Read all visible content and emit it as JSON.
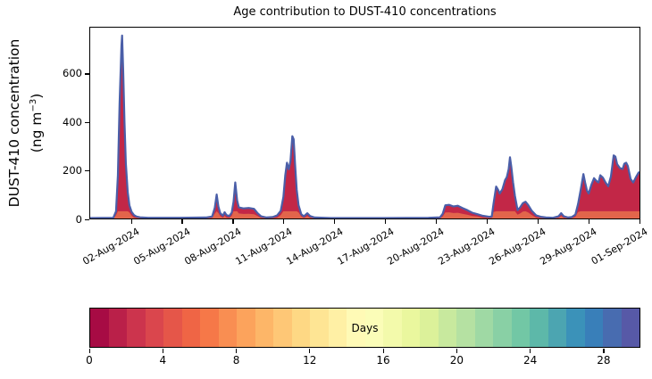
{
  "chart_data": {
    "type": "area",
    "stacked": true,
    "title": "Age contribution to DUST-410 concentrations",
    "ylabel": "DUST-410 concentration (ng m⁻³)",
    "ylabel_line1": "DUST-410 concentration",
    "ylabel_line2_prefix": "(ng m",
    "ylabel_sup": "−3",
    "ylabel_line2_suffix": ")",
    "ylim": [
      0,
      795
    ],
    "yticks": [
      0,
      200,
      400,
      600
    ],
    "grid": false,
    "x_domain_days": [
      -2.48,
      30.05
    ],
    "x_ticks": [
      {
        "day": 0,
        "label": "02-Aug-2024"
      },
      {
        "day": 3,
        "label": "05-Aug-2024"
      },
      {
        "day": 6,
        "label": "08-Aug-2024"
      },
      {
        "day": 9,
        "label": "11-Aug-2024"
      },
      {
        "day": 12,
        "label": "14-Aug-2024"
      },
      {
        "day": 15,
        "label": "17-Aug-2024"
      },
      {
        "day": 18,
        "label": "20-Aug-2024"
      },
      {
        "day": 21,
        "label": "23-Aug-2024"
      },
      {
        "day": 24,
        "label": "26-Aug-2024"
      },
      {
        "day": 27,
        "label": "29-Aug-2024"
      },
      {
        "day": 30,
        "label": "01-Sep-2024"
      }
    ],
    "colorbar": {
      "label": "Days",
      "ticks": [
        0,
        4,
        8,
        12,
        16,
        20,
        24,
        28
      ],
      "range": [
        0,
        30
      ],
      "segments": 30,
      "colormap": "Spectral",
      "stops": [
        [
          0.0,
          "#9e0142"
        ],
        [
          0.1,
          "#d53e4f"
        ],
        [
          0.2,
          "#f46d43"
        ],
        [
          0.3,
          "#fdae61"
        ],
        [
          0.4,
          "#fee08b"
        ],
        [
          0.5,
          "#ffffbf"
        ],
        [
          0.6,
          "#e6f598"
        ],
        [
          0.7,
          "#abdda4"
        ],
        [
          0.8,
          "#66c2a5"
        ],
        [
          0.9,
          "#3288bd"
        ],
        [
          1.0,
          "#5e4fa2"
        ]
      ]
    },
    "series_description": "Total DUST-410 concentration; area colored by dust age (red = young days, blue = old days)",
    "points_units": {
      "x": "days since 02-Aug-2024 00:00",
      "y": "ng m⁻³"
    },
    "points": [
      [
        -2.48,
        2
      ],
      [
        -1.11,
        3
      ],
      [
        -0.95,
        30
      ],
      [
        -0.84,
        180
      ],
      [
        -0.74,
        480
      ],
      [
        -0.63,
        720
      ],
      [
        -0.59,
        762
      ],
      [
        -0.53,
        620
      ],
      [
        -0.45,
        400
      ],
      [
        -0.37,
        230
      ],
      [
        -0.26,
        110
      ],
      [
        -0.16,
        55
      ],
      [
        -0.03,
        28
      ],
      [
        0.11,
        14
      ],
      [
        0.26,
        8
      ],
      [
        0.47,
        5
      ],
      [
        0.95,
        3
      ],
      [
        2.8,
        3
      ],
      [
        4.37,
        4
      ],
      [
        4.74,
        8
      ],
      [
        4.9,
        45
      ],
      [
        5.01,
        100
      ],
      [
        5.11,
        50
      ],
      [
        5.22,
        22
      ],
      [
        5.38,
        12
      ],
      [
        5.48,
        26
      ],
      [
        5.59,
        14
      ],
      [
        5.75,
        10
      ],
      [
        5.9,
        24
      ],
      [
        6.01,
        70
      ],
      [
        6.11,
        150
      ],
      [
        6.22,
        75
      ],
      [
        6.32,
        46
      ],
      [
        6.59,
        42
      ],
      [
        6.91,
        44
      ],
      [
        7.22,
        40
      ],
      [
        7.43,
        22
      ],
      [
        7.64,
        9
      ],
      [
        7.96,
        4
      ],
      [
        8.33,
        6
      ],
      [
        8.59,
        13
      ],
      [
        8.8,
        32
      ],
      [
        8.96,
        90
      ],
      [
        9.07,
        180
      ],
      [
        9.17,
        232
      ],
      [
        9.28,
        205
      ],
      [
        9.38,
        238
      ],
      [
        9.49,
        343
      ],
      [
        9.57,
        330
      ],
      [
        9.65,
        230
      ],
      [
        9.75,
        120
      ],
      [
        9.86,
        55
      ],
      [
        10.02,
        18
      ],
      [
        10.17,
        9
      ],
      [
        10.38,
        22
      ],
      [
        10.54,
        10
      ],
      [
        10.81,
        4
      ],
      [
        11.76,
        2
      ],
      [
        14.92,
        2
      ],
      [
        17.55,
        3
      ],
      [
        18.24,
        5
      ],
      [
        18.4,
        20
      ],
      [
        18.55,
        55
      ],
      [
        18.77,
        57
      ],
      [
        19.03,
        50
      ],
      [
        19.29,
        53
      ],
      [
        19.56,
        44
      ],
      [
        19.87,
        34
      ],
      [
        20.14,
        24
      ],
      [
        20.45,
        18
      ],
      [
        20.77,
        11
      ],
      [
        21.14,
        7
      ],
      [
        21.3,
        8
      ],
      [
        21.4,
        60
      ],
      [
        21.56,
        133
      ],
      [
        21.67,
        120
      ],
      [
        21.77,
        104
      ],
      [
        21.93,
        122
      ],
      [
        22.09,
        160
      ],
      [
        22.19,
        172
      ],
      [
        22.3,
        205
      ],
      [
        22.38,
        255
      ],
      [
        22.46,
        215
      ],
      [
        22.56,
        152
      ],
      [
        22.67,
        95
      ],
      [
        22.83,
        35
      ],
      [
        22.98,
        46
      ],
      [
        23.14,
        64
      ],
      [
        23.3,
        70
      ],
      [
        23.46,
        56
      ],
      [
        23.67,
        32
      ],
      [
        23.93,
        13
      ],
      [
        24.2,
        7
      ],
      [
        24.51,
        4
      ],
      [
        24.93,
        3
      ],
      [
        25.25,
        9
      ],
      [
        25.41,
        22
      ],
      [
        25.57,
        9
      ],
      [
        25.83,
        4
      ],
      [
        26.04,
        6
      ],
      [
        26.25,
        16
      ],
      [
        26.41,
        60
      ],
      [
        26.57,
        120
      ],
      [
        26.73,
        185
      ],
      [
        26.83,
        150
      ],
      [
        26.94,
        116
      ],
      [
        27.04,
        104
      ],
      [
        27.2,
        140
      ],
      [
        27.36,
        168
      ],
      [
        27.52,
        155
      ],
      [
        27.62,
        150
      ],
      [
        27.73,
        180
      ],
      [
        27.88,
        170
      ],
      [
        28.04,
        150
      ],
      [
        28.2,
        134
      ],
      [
        28.36,
        175
      ],
      [
        28.52,
        263
      ],
      [
        28.62,
        258
      ],
      [
        28.73,
        226
      ],
      [
        28.89,
        210
      ],
      [
        29.05,
        206
      ],
      [
        29.15,
        228
      ],
      [
        29.26,
        232
      ],
      [
        29.36,
        218
      ],
      [
        29.52,
        165
      ],
      [
        29.68,
        150
      ],
      [
        29.84,
        172
      ],
      [
        30.0,
        192
      ],
      [
        30.05,
        192
      ]
    ]
  },
  "colors": {
    "area_young": "#c22747",
    "area_mid": "#e2654b",
    "area_old_edge": "#4a5ea8",
    "axis": "#000000",
    "text": "#000000",
    "background": "#ffffff"
  }
}
